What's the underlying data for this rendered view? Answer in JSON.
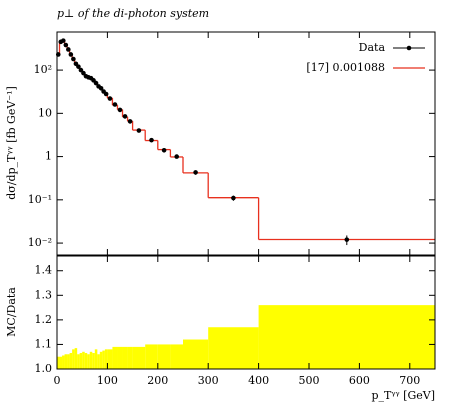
{
  "chart_data": {
    "type": "histogram",
    "title": "p⊥ of the di-photon system",
    "ylabel": "dσ/dp_Tᵞᵞ [fb GeV⁻¹]",
    "xlabel": "p_Tᵞᵞ [GeV]",
    "bins": [
      0,
      5,
      10,
      15,
      20,
      25,
      30,
      35,
      40,
      45,
      50,
      55,
      60,
      65,
      70,
      75,
      80,
      85,
      90,
      95,
      100,
      110,
      120,
      130,
      140,
      150,
      175,
      200,
      225,
      250,
      300,
      400,
      750
    ],
    "series": [
      {
        "name": "Data",
        "color": "#000000",
        "values": [
          230,
          450,
          480,
          380,
          300,
          230,
          180,
          140,
          120,
          100,
          85,
          72,
          68,
          65,
          58,
          50,
          42,
          38,
          32,
          28,
          22,
          16,
          12,
          8.5,
          6.5,
          4,
          2.4,
          1.4,
          1.0,
          0.43,
          0.11,
          0.012
        ],
        "errors": [
          15,
          25,
          25,
          20,
          16,
          12,
          10,
          8,
          7,
          6,
          5,
          4.5,
          4,
          4,
          3.5,
          3,
          2.5,
          2.3,
          2,
          1.8,
          1.4,
          1.1,
          0.8,
          0.6,
          0.5,
          0.3,
          0.2,
          0.12,
          0.09,
          0.05,
          0.015,
          0.003
        ]
      },
      {
        "name": "[17] 0.001088",
        "color": "#e8301e",
        "values": [
          235,
          440,
          470,
          385,
          295,
          235,
          175,
          142,
          118,
          102,
          84,
          73,
          67,
          64,
          57,
          51,
          43,
          37,
          33,
          27,
          22.5,
          15.5,
          12.2,
          8.3,
          6.6,
          4.1,
          2.35,
          1.45,
          0.98,
          0.42,
          0.112,
          0.0121
        ]
      }
    ],
    "xlim": [
      0,
      750
    ],
    "xticks": [
      0,
      100,
      200,
      300,
      400,
      500,
      600,
      700
    ],
    "ylim": [
      0.0053,
      760
    ],
    "log_y": true,
    "yticks": [
      {
        "value": 0.01,
        "label": "10⁻²"
      },
      {
        "value": 0.1,
        "label": "10⁻¹"
      },
      1,
      10,
      {
        "value": 100,
        "label": "10²"
      }
    ],
    "legend": "upper right",
    "ratio": {
      "ylabel": "MC/Data",
      "ylim": [
        1.0,
        1.46
      ],
      "yticks": [
        {
          "value": 1.0,
          "label": "1.0"
        },
        1.1,
        1.2,
        1.3,
        1.4
      ],
      "band_color": "#ffff00",
      "band": [
        0.05,
        0.05,
        0.055,
        0.06,
        0.06,
        0.065,
        0.08,
        0.085,
        0.06,
        0.065,
        0.07,
        0.065,
        0.06,
        0.07,
        0.065,
        0.08,
        0.06,
        0.07,
        0.075,
        0.08,
        0.08,
        0.09,
        0.09,
        0.09,
        0.09,
        0.09,
        0.1,
        0.1,
        0.1,
        0.12,
        0.17,
        0.26
      ]
    }
  }
}
